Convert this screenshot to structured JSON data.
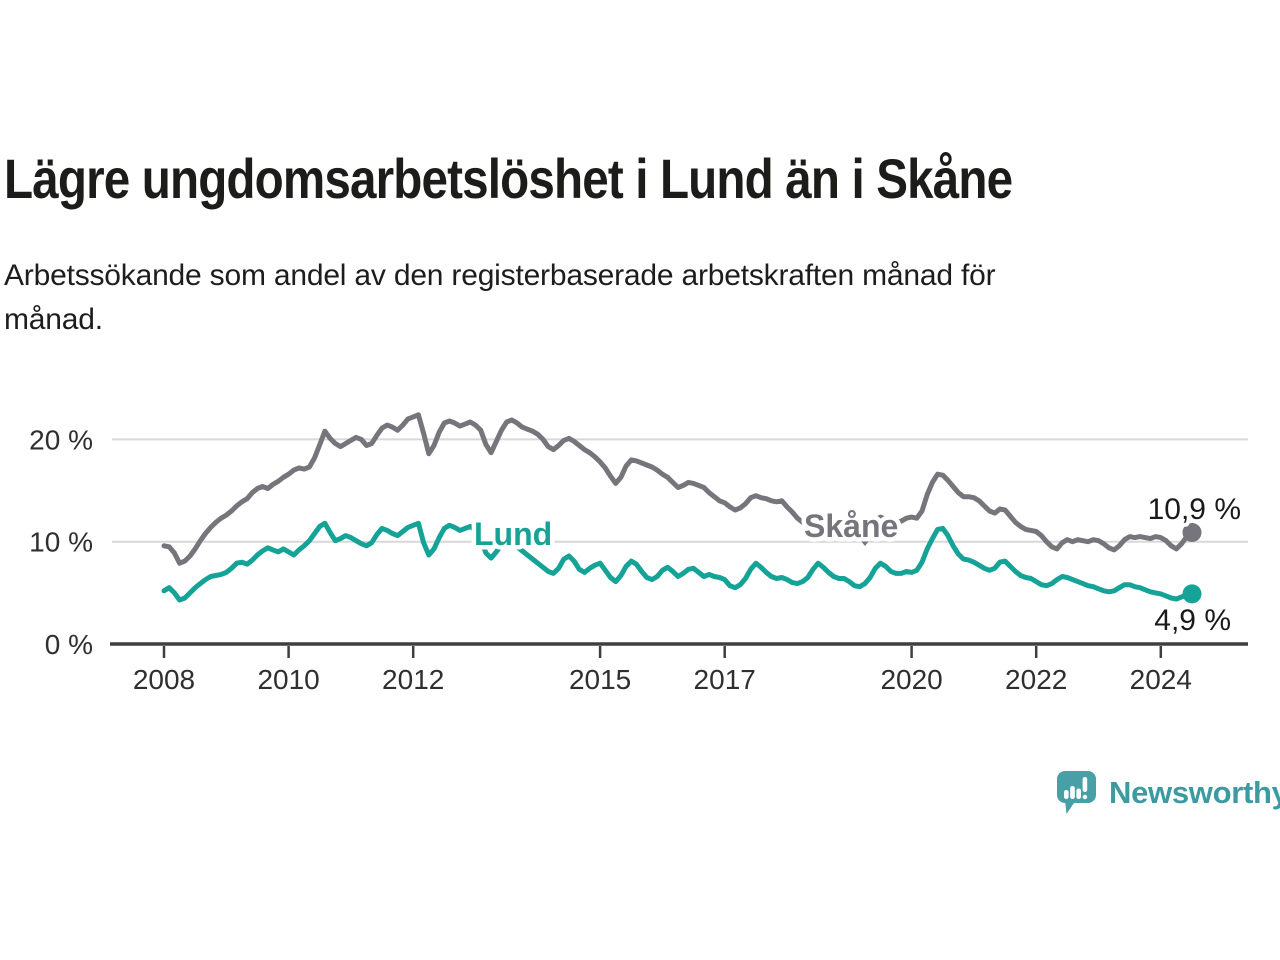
{
  "header": {
    "title": "Lägre ungdomsarbetslöshet i Lund än i Skåne",
    "subtitle": "Arbetssökande som andel av den registerbaserade arbetskraften månad för månad.",
    "subtitle_line1": "Arbetssökande som andel av den registerbaserade arbetskraften månad för",
    "subtitle_line2": "månad."
  },
  "footer": {
    "brand": "Newsworthy"
  },
  "colors": {
    "lund": "#14A396",
    "skane": "#75757B",
    "axis": "#3F3F3F",
    "grid": "#D8D8D8",
    "tick_text": "#2F2F2F",
    "annotation_text": "#1A1A1A",
    "brand_teal": "#46A0A6"
  },
  "chart_data": {
    "type": "line",
    "title": "Lägre ungdomsarbetslöshet i Lund än i Skåne",
    "subtitle": "Arbetssökande som andel av den registerbaserade arbetskraften månad för månad.",
    "frequency": "monthly",
    "x_start": "2008-01",
    "x_end": "2024-07",
    "x_ticks": [
      "2008",
      "2010",
      "2012",
      "2015",
      "2017",
      "2020",
      "2022",
      "2024"
    ],
    "y_ticks": [
      {
        "value": 0,
        "label": "0 %"
      },
      {
        "value": 10,
        "label": "10 %"
      },
      {
        "value": 20,
        "label": "20 %"
      }
    ],
    "ylim": [
      0,
      24
    ],
    "grid": "horizontal",
    "legend_position": "inline-labels",
    "series": [
      {
        "name": "Skåne",
        "color": "#75757B",
        "end_label": "10,9 %",
        "end_value": 10.9,
        "values": [
          9.6,
          9.5,
          8.9,
          7.9,
          8.1,
          8.6,
          9.3,
          10.1,
          10.8,
          11.4,
          11.9,
          12.3,
          12.6,
          13.0,
          13.5,
          13.9,
          14.2,
          14.8,
          15.2,
          15.4,
          15.2,
          15.6,
          15.9,
          16.3,
          16.6,
          17.0,
          17.2,
          17.1,
          17.3,
          18.2,
          19.5,
          20.8,
          20.1,
          19.6,
          19.3,
          19.6,
          19.9,
          20.2,
          20.0,
          19.4,
          19.6,
          20.4,
          21.1,
          21.4,
          21.2,
          20.9,
          21.4,
          22.0,
          22.2,
          22.4,
          20.6,
          18.6,
          19.4,
          20.7,
          21.6,
          21.8,
          21.6,
          21.3,
          21.5,
          21.7,
          21.4,
          20.9,
          19.5,
          18.7,
          19.8,
          20.9,
          21.7,
          21.9,
          21.6,
          21.2,
          21.0,
          20.8,
          20.5,
          20.0,
          19.3,
          19.0,
          19.4,
          19.9,
          20.1,
          19.8,
          19.4,
          19.0,
          18.7,
          18.3,
          17.8,
          17.2,
          16.4,
          15.7,
          16.3,
          17.4,
          18.0,
          17.9,
          17.7,
          17.5,
          17.3,
          17.0,
          16.6,
          16.3,
          15.8,
          15.3,
          15.5,
          15.8,
          15.7,
          15.5,
          15.3,
          14.8,
          14.4,
          14.0,
          13.8,
          13.4,
          13.1,
          13.3,
          13.7,
          14.3,
          14.5,
          14.3,
          14.2,
          14.0,
          13.9,
          14.0,
          13.4,
          12.9,
          12.3,
          11.9,
          12.1,
          12.5,
          12.7,
          12.5,
          12.2,
          12.0,
          11.9,
          12.1,
          11.9,
          11.7,
          11.5,
          11.4,
          11.7,
          12.1,
          12.4,
          12.2,
          12.0,
          11.9,
          12.0,
          12.3,
          12.4,
          12.3,
          13.0,
          14.6,
          15.8,
          16.6,
          16.5,
          16.0,
          15.4,
          14.8,
          14.4,
          14.4,
          14.3,
          14.0,
          13.5,
          13.0,
          12.8,
          13.2,
          13.1,
          12.5,
          11.9,
          11.5,
          11.2,
          11.1,
          11.0,
          10.6,
          10.0,
          9.5,
          9.3,
          9.9,
          10.2,
          10.0,
          10.2,
          10.1,
          10.0,
          10.2,
          10.1,
          9.8,
          9.4,
          9.2,
          9.6,
          10.2,
          10.5,
          10.4,
          10.5,
          10.4,
          10.3,
          10.5,
          10.4,
          10.1,
          9.6,
          9.3,
          9.8,
          10.5,
          10.9
        ]
      },
      {
        "name": "Lund",
        "color": "#14A396",
        "end_label": "4,9 %",
        "end_value": 4.9,
        "values": [
          5.2,
          5.5,
          5.0,
          4.3,
          4.5,
          5.0,
          5.5,
          5.9,
          6.3,
          6.6,
          6.7,
          6.8,
          7.0,
          7.4,
          7.9,
          8.0,
          7.8,
          8.2,
          8.7,
          9.1,
          9.4,
          9.2,
          9.0,
          9.3,
          9.0,
          8.7,
          9.2,
          9.6,
          10.1,
          10.8,
          11.5,
          11.8,
          10.9,
          10.1,
          10.3,
          10.6,
          10.4,
          10.1,
          9.8,
          9.6,
          9.9,
          10.7,
          11.3,
          11.1,
          10.8,
          10.6,
          11.0,
          11.4,
          11.6,
          11.8,
          9.9,
          8.7,
          9.3,
          10.4,
          11.3,
          11.6,
          11.4,
          11.1,
          11.3,
          11.5,
          11.1,
          10.3,
          8.9,
          8.4,
          9.0,
          9.7,
          10.1,
          9.9,
          9.5,
          9.1,
          8.7,
          8.3,
          7.9,
          7.5,
          7.1,
          6.9,
          7.4,
          8.3,
          8.6,
          8.1,
          7.3,
          7.0,
          7.4,
          7.7,
          7.9,
          7.2,
          6.5,
          6.1,
          6.7,
          7.6,
          8.1,
          7.8,
          7.1,
          6.5,
          6.3,
          6.6,
          7.2,
          7.5,
          7.1,
          6.6,
          6.9,
          7.3,
          7.4,
          7.0,
          6.6,
          6.8,
          6.6,
          6.5,
          6.3,
          5.7,
          5.5,
          5.8,
          6.4,
          7.3,
          7.9,
          7.5,
          7.0,
          6.6,
          6.4,
          6.5,
          6.3,
          6.0,
          5.9,
          6.1,
          6.5,
          7.3,
          7.9,
          7.5,
          7.0,
          6.6,
          6.4,
          6.4,
          6.1,
          5.7,
          5.6,
          5.9,
          6.5,
          7.4,
          7.9,
          7.6,
          7.1,
          6.9,
          6.9,
          7.1,
          7.0,
          7.2,
          8.0,
          9.3,
          10.3,
          11.2,
          11.3,
          10.6,
          9.6,
          8.8,
          8.3,
          8.2,
          8.0,
          7.7,
          7.4,
          7.2,
          7.4,
          8.0,
          8.1,
          7.6,
          7.1,
          6.7,
          6.5,
          6.4,
          6.1,
          5.8,
          5.7,
          5.9,
          6.3,
          6.6,
          6.5,
          6.3,
          6.1,
          5.9,
          5.7,
          5.6,
          5.4,
          5.2,
          5.1,
          5.2,
          5.5,
          5.8,
          5.8,
          5.6,
          5.5,
          5.3,
          5.1,
          5.0,
          4.9,
          4.7,
          4.5,
          4.4,
          4.6,
          4.8,
          4.9
        ]
      }
    ]
  }
}
